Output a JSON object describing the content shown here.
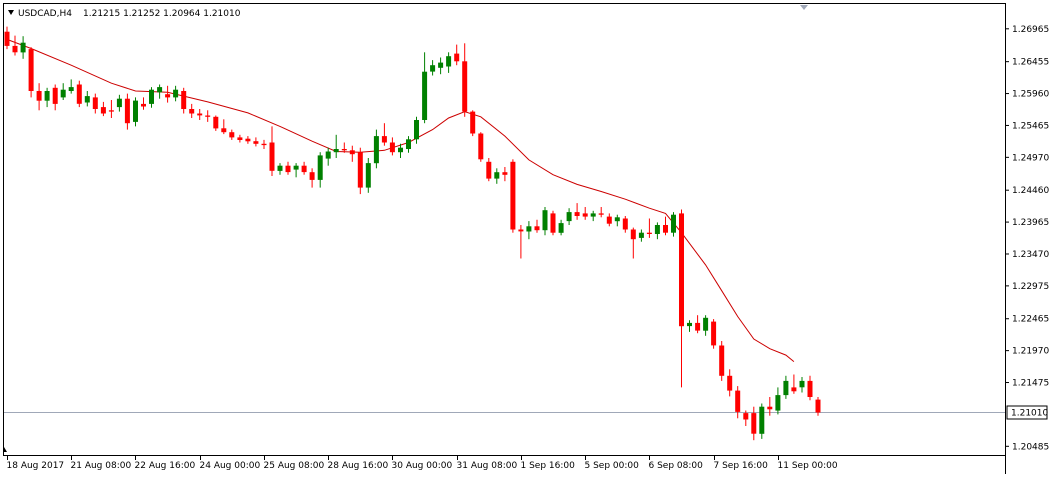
{
  "colors": {
    "background": "#ffffff",
    "bull": "#008000",
    "bear": "#ff0000",
    "ma": "#cc0000",
    "price_line": "#a0a8b8",
    "price_label_bg": "#ffffff",
    "text": "#000000"
  },
  "header": {
    "menu_icon": "triangle-down-icon",
    "symbol": "USDCAD,H4",
    "ohlc": "1.21215 1.21252 1.20964 1.21010"
  },
  "chart_data": {
    "type": "candlestick",
    "symbol": "USDCAD",
    "timeframe": "H4",
    "ylim": [
      1.2035,
      1.2735
    ],
    "y_ticks": [
      "1.26965",
      "1.26455",
      "1.25960",
      "1.25465",
      "1.24970",
      "1.24460",
      "1.23965",
      "1.23470",
      "1.22975",
      "1.22465",
      "1.21970",
      "1.21475",
      "1.20485"
    ],
    "x_ticks": [
      {
        "index": 0,
        "label": "18 Aug 2017"
      },
      {
        "index": 8,
        "label": "21 Aug 08:00"
      },
      {
        "index": 16,
        "label": "22 Aug 16:00"
      },
      {
        "index": 24,
        "label": "24 Aug 00:00"
      },
      {
        "index": 32,
        "label": "25 Aug 08:00"
      },
      {
        "index": 40,
        "label": "28 Aug 16:00"
      },
      {
        "index": 48,
        "label": "30 Aug 00:00"
      },
      {
        "index": 56,
        "label": "31 Aug 08:00"
      },
      {
        "index": 64,
        "label": "1 Sep 16:00"
      },
      {
        "index": 72,
        "label": "5 Sep 00:00"
      },
      {
        "index": 80,
        "label": "6 Sep 08:00"
      },
      {
        "index": 88,
        "label": "7 Sep 16:00"
      },
      {
        "index": 96,
        "label": "11 Sep 00:00"
      }
    ],
    "current_price": "1.21010",
    "current_value": 1.2101,
    "candles": [
      [
        1.2692,
        1.27,
        1.2665,
        1.267
      ],
      [
        1.267,
        1.2686,
        1.2655,
        1.266
      ],
      [
        1.266,
        1.2685,
        1.265,
        1.2675
      ],
      [
        1.2665,
        1.2668,
        1.259,
        1.26
      ],
      [
        1.26,
        1.2612,
        1.257,
        1.2585
      ],
      [
        1.2585,
        1.2605,
        1.2575,
        1.26
      ],
      [
        1.2605,
        1.261,
        1.257,
        1.258
      ],
      [
        1.259,
        1.2612,
        1.2586,
        1.2602
      ],
      [
        1.26,
        1.2618,
        1.2596,
        1.2606
      ],
      [
        1.261,
        1.2616,
        1.2575,
        1.258
      ],
      [
        1.2582,
        1.26,
        1.2576,
        1.2592
      ],
      [
        1.259,
        1.2596,
        1.2565,
        1.2572
      ],
      [
        1.2575,
        1.2583,
        1.2561,
        1.2565
      ],
      [
        1.257,
        1.2586,
        1.2558,
        1.2568
      ],
      [
        1.2575,
        1.2594,
        1.2568,
        1.2588
      ],
      [
        1.2588,
        1.2596,
        1.254,
        1.255
      ],
      [
        1.2552,
        1.259,
        1.2545,
        1.2585
      ],
      [
        1.258,
        1.259,
        1.2571,
        1.2576
      ],
      [
        1.258,
        1.2606,
        1.2574,
        1.2602
      ],
      [
        1.2598,
        1.261,
        1.2588,
        1.2606
      ],
      [
        1.2595,
        1.2608,
        1.2582,
        1.259
      ],
      [
        1.259,
        1.2608,
        1.2584,
        1.2602
      ],
      [
        1.26,
        1.2605,
        1.2565,
        1.2572
      ],
      [
        1.2572,
        1.258,
        1.2558,
        1.2565
      ],
      [
        1.2565,
        1.2572,
        1.2555,
        1.2562
      ],
      [
        1.2562,
        1.257,
        1.2552,
        1.256
      ],
      [
        1.256,
        1.2562,
        1.2538,
        1.2542
      ],
      [
        1.2542,
        1.2556,
        1.2533,
        1.2536
      ],
      [
        1.2536,
        1.254,
        1.2524,
        1.2528
      ],
      [
        1.2528,
        1.2532,
        1.252,
        1.2524
      ],
      [
        1.2526,
        1.253,
        1.2518,
        1.2522
      ],
      [
        1.2522,
        1.2528,
        1.2514,
        1.2518
      ],
      [
        1.2518,
        1.2524,
        1.251,
        1.2516
      ],
      [
        1.252,
        1.2545,
        1.2468,
        1.2476
      ],
      [
        1.2476,
        1.2488,
        1.247,
        1.2484
      ],
      [
        1.2484,
        1.249,
        1.247,
        1.2474
      ],
      [
        1.2478,
        1.2488,
        1.2466,
        1.2484
      ],
      [
        1.2484,
        1.249,
        1.247,
        1.2474
      ],
      [
        1.2474,
        1.248,
        1.245,
        1.2462
      ],
      [
        1.2462,
        1.2505,
        1.245,
        1.25
      ],
      [
        1.2495,
        1.2512,
        1.2484,
        1.2506
      ],
      [
        1.2505,
        1.2532,
        1.2496,
        1.251
      ],
      [
        1.251,
        1.252,
        1.2504,
        1.2508
      ],
      [
        1.2508,
        1.2515,
        1.249,
        1.2502
      ],
      [
        1.2505,
        1.2512,
        1.244,
        1.245
      ],
      [
        1.245,
        1.2496,
        1.2442,
        1.2488
      ],
      [
        1.2488,
        1.254,
        1.248,
        1.253
      ],
      [
        1.253,
        1.255,
        1.2515,
        1.252
      ],
      [
        1.252,
        1.2528,
        1.25,
        1.2505
      ],
      [
        1.2505,
        1.2518,
        1.2496,
        1.2512
      ],
      [
        1.251,
        1.253,
        1.2504,
        1.2525
      ],
      [
        1.2525,
        1.256,
        1.2518,
        1.2555
      ],
      [
        1.2555,
        1.266,
        1.255,
        1.263
      ],
      [
        1.263,
        1.2648,
        1.2624,
        1.264
      ],
      [
        1.2636,
        1.2652,
        1.2626,
        1.2644
      ],
      [
        1.2638,
        1.266,
        1.2628,
        1.2654
      ],
      [
        1.2658,
        1.2672,
        1.264,
        1.2646
      ],
      [
        1.2646,
        1.2674,
        1.256,
        1.2568
      ],
      [
        1.2568,
        1.257,
        1.253,
        1.2534
      ],
      [
        1.2534,
        1.2536,
        1.249,
        1.2494
      ],
      [
        1.249,
        1.2496,
        1.246,
        1.2464
      ],
      [
        1.2464,
        1.248,
        1.2456,
        1.2474
      ],
      [
        1.2474,
        1.2482,
        1.246,
        1.247
      ],
      [
        1.249,
        1.2494,
        1.238,
        1.2385
      ],
      [
        1.2385,
        1.2392,
        1.234,
        1.2382
      ],
      [
        1.2382,
        1.2398,
        1.237,
        1.239
      ],
      [
        1.239,
        1.24,
        1.238,
        1.2384
      ],
      [
        1.2384,
        1.242,
        1.2376,
        1.2415
      ],
      [
        1.241,
        1.2414,
        1.2376,
        1.238
      ],
      [
        1.238,
        1.24,
        1.2376,
        1.2395
      ],
      [
        1.2398,
        1.2418,
        1.2392,
        1.2412
      ],
      [
        1.2412,
        1.2426,
        1.24,
        1.2406
      ],
      [
        1.241,
        1.242,
        1.24,
        1.2405
      ],
      [
        1.2405,
        1.2414,
        1.2398,
        1.241
      ],
      [
        1.241,
        1.242,
        1.2404,
        1.2408
      ],
      [
        1.2405,
        1.241,
        1.239,
        1.2394
      ],
      [
        1.2398,
        1.2408,
        1.239,
        1.2404
      ],
      [
        1.2402,
        1.2406,
        1.238,
        1.2385
      ],
      [
        1.2385,
        1.2388,
        1.234,
        1.237
      ],
      [
        1.2372,
        1.2385,
        1.2366,
        1.238
      ],
      [
        1.238,
        1.2402,
        1.2372,
        1.2378
      ],
      [
        1.2378,
        1.2396,
        1.237,
        1.2392
      ],
      [
        1.2392,
        1.2405,
        1.2376,
        1.238
      ],
      [
        1.238,
        1.2412,
        1.2374,
        1.2408
      ],
      [
        1.241,
        1.2416,
        1.214,
        1.2235
      ],
      [
        1.2235,
        1.2244,
        1.2226,
        1.224
      ],
      [
        1.224,
        1.2252,
        1.2224,
        1.2228
      ],
      [
        1.2228,
        1.2252,
        1.222,
        1.2248
      ],
      [
        1.2242,
        1.2246,
        1.22,
        1.2205
      ],
      [
        1.2205,
        1.2212,
        1.215,
        1.2158
      ],
      [
        1.2158,
        1.2168,
        1.2126,
        1.2135
      ],
      [
        1.2135,
        1.2142,
        1.2092,
        1.2102
      ],
      [
        1.21,
        1.2104,
        1.208,
        1.209
      ],
      [
        1.21,
        1.211,
        1.2058,
        1.2068
      ],
      [
        1.2068,
        1.2115,
        1.206,
        1.211
      ],
      [
        1.211,
        1.2125,
        1.2096,
        1.2106
      ],
      [
        1.2104,
        1.214,
        1.2098,
        1.2128
      ],
      [
        1.2128,
        1.2158,
        1.2122,
        1.215
      ],
      [
        1.214,
        1.216,
        1.213,
        1.2134
      ],
      [
        1.214,
        1.2156,
        1.2132,
        1.215
      ],
      [
        1.215,
        1.2158,
        1.212,
        1.2125
      ],
      [
        1.2121,
        1.2125,
        1.2096,
        1.2101
      ]
    ],
    "moving_average": [
      [
        0,
        1.268
      ],
      [
        3,
        1.2666
      ],
      [
        8,
        1.264
      ],
      [
        13,
        1.2612
      ],
      [
        16,
        1.26
      ],
      [
        20,
        1.2598
      ],
      [
        25,
        1.2583
      ],
      [
        30,
        1.2566
      ],
      [
        34,
        1.2545
      ],
      [
        38,
        1.2522
      ],
      [
        41,
        1.2506
      ],
      [
        44,
        1.2505
      ],
      [
        47,
        1.2508
      ],
      [
        50,
        1.252
      ],
      [
        53,
        1.254
      ],
      [
        55,
        1.2558
      ],
      [
        57,
        1.2568
      ],
      [
        59,
        1.256
      ],
      [
        62,
        1.253
      ],
      [
        65,
        1.2493
      ],
      [
        68,
        1.247
      ],
      [
        71,
        1.2455
      ],
      [
        74,
        1.2444
      ],
      [
        77,
        1.2432
      ],
      [
        80,
        1.2418
      ],
      [
        82,
        1.241
      ],
      [
        84,
        1.238
      ],
      [
        87,
        1.233
      ],
      [
        89,
        1.229
      ],
      [
        91,
        1.225
      ],
      [
        93,
        1.2215
      ],
      [
        95,
        1.22
      ],
      [
        97,
        1.219
      ],
      [
        98,
        1.218
      ]
    ]
  }
}
